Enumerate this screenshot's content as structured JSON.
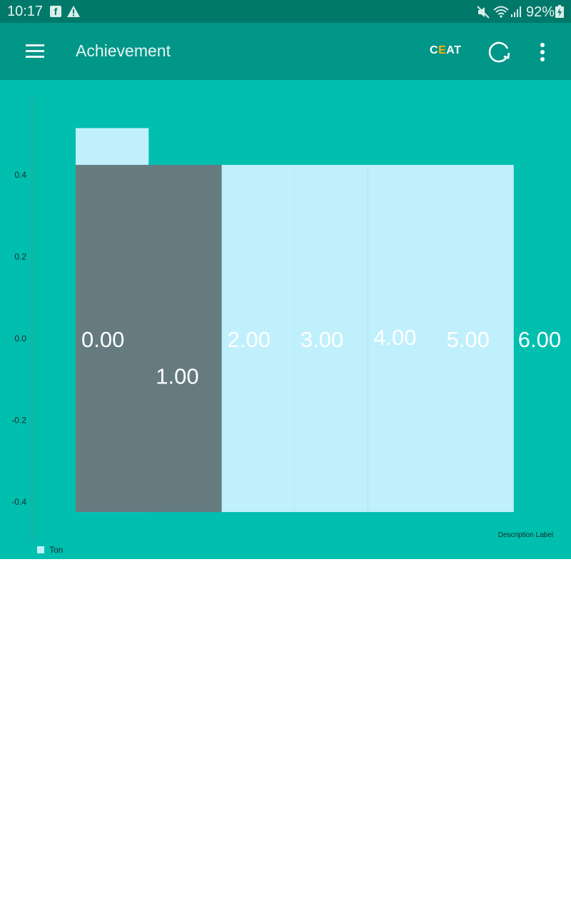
{
  "status_bar": {
    "time": "10:17",
    "facebook_glyph": "f",
    "battery_percent": "92%",
    "icons": [
      "facebook-icon",
      "warning-icon",
      "mute-icon",
      "wifi-icon",
      "signal-icon",
      "battery-charging-icon"
    ]
  },
  "app_bar": {
    "title": "Achievement",
    "brand_left": "C",
    "brand_mid": "E",
    "brand_right": "AT",
    "icons": [
      "menu-icon",
      "refresh-icon",
      "more-vert-icon"
    ]
  },
  "colors": {
    "status_bar": "#00796b",
    "app_bar": "#009688",
    "chart_background": "#00bfae",
    "bar_light": "#c0f0fc",
    "bar_highlight": "#657b80",
    "axis": "#3f9e93"
  },
  "chart_data": {
    "type": "bar",
    "y_ticks": [
      "0.4",
      "0.2",
      "0.0",
      "-0.2",
      "-0.4"
    ],
    "ylim": [
      -0.425,
      0.425
    ],
    "categories": [
      0,
      1,
      2,
      3,
      4,
      5,
      6
    ],
    "series": [
      {
        "name": "Ton",
        "values": [
          0.0,
          1.0,
          2.0,
          3.0,
          4.0,
          5.0,
          6.0
        ],
        "value_labels": [
          "0.00",
          "1.00",
          "2.00",
          "3.00",
          "4.00",
          "5.00",
          "6.00"
        ],
        "highlighted_index": 1
      }
    ],
    "legend": {
      "entries": [
        "Ton"
      ],
      "placement": "bottom-left"
    },
    "description": "Description Label"
  }
}
